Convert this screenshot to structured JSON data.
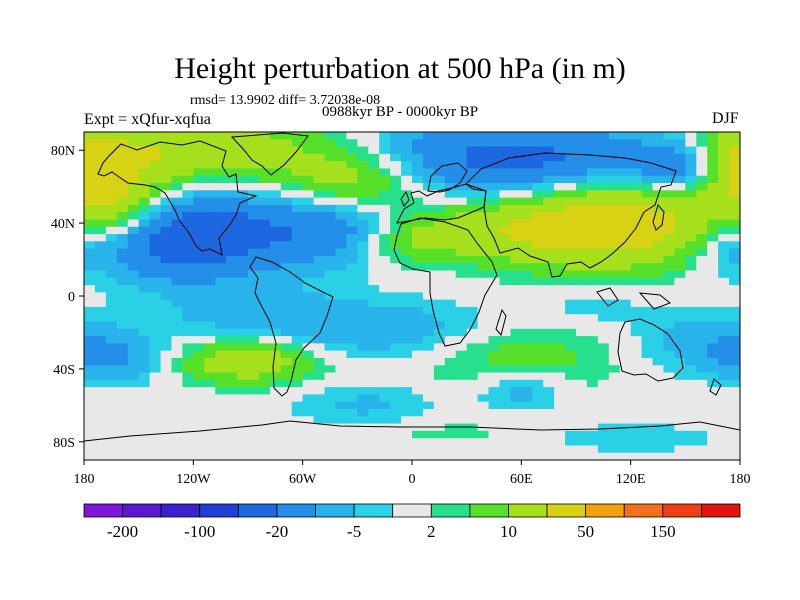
{
  "chart_data": {
    "type": "heatmap",
    "title": "Height perturbation at 500 hPa (in m)",
    "stats_line": "rmsd= 13.9902 diff= 3.72038e-08",
    "experiment": "Expt = xQfur-xqfua",
    "period": "0988kyr BP - 0000kyr BP",
    "season": "DJF",
    "xlabel": "",
    "ylabel": "",
    "xlim": [
      -180,
      180
    ],
    "ylim": [
      -90,
      90
    ],
    "x_ticks": [
      {
        "value": -180,
        "label": "180"
      },
      {
        "value": -120,
        "label": "120W"
      },
      {
        "value": -60,
        "label": "60W"
      },
      {
        "value": 0,
        "label": "0"
      },
      {
        "value": 60,
        "label": "60E"
      },
      {
        "value": 120,
        "label": "120E"
      },
      {
        "value": 180,
        "label": "180"
      }
    ],
    "y_ticks": [
      {
        "value": 80,
        "label": "80N"
      },
      {
        "value": 40,
        "label": "40N"
      },
      {
        "value": 0,
        "label": "0"
      },
      {
        "value": -40,
        "label": "40S"
      },
      {
        "value": -80,
        "label": "80S"
      }
    ],
    "colorbar": {
      "colors": [
        "#7f16d9",
        "#5a18d2",
        "#3a22cf",
        "#1f3fd6",
        "#1d67e0",
        "#238fe8",
        "#28b4ea",
        "#2ad0e6",
        "#e8e8e8",
        "#27e08e",
        "#57e02a",
        "#a6e01c",
        "#d8d215",
        "#f2a20e",
        "#f3701a",
        "#ee4013",
        "#e0150f"
      ],
      "labels": [
        {
          "boundary": 1,
          "label": "-200"
        },
        {
          "boundary": 3,
          "label": "-100"
        },
        {
          "boundary": 5,
          "label": "-20"
        },
        {
          "boundary": 7,
          "label": "-5"
        },
        {
          "boundary": 9,
          "label": "2"
        },
        {
          "boundary": 11,
          "label": "10"
        },
        {
          "boundary": 13,
          "label": "50"
        },
        {
          "boundary": 15,
          "label": "150"
        }
      ]
    },
    "anomaly_centers": [
      {
        "lon": -120,
        "lat": 80,
        "value": 18,
        "sx": 55,
        "sy": 12
      },
      {
        "lon": -170,
        "lat": 50,
        "value": 28,
        "sx": 22,
        "sy": 22
      },
      {
        "lon": -110,
        "lat": 35,
        "value": -24,
        "sx": 42,
        "sy": 15
      },
      {
        "lon": -150,
        "lat": 25,
        "value": -14,
        "sx": 35,
        "sy": 14
      },
      {
        "lon": -40,
        "lat": 35,
        "value": -10,
        "sx": 25,
        "sy": 12
      },
      {
        "lon": -30,
        "lat": 65,
        "value": 16,
        "sx": 30,
        "sy": 12
      },
      {
        "lon": 55,
        "lat": 75,
        "value": -25,
        "sx": 60,
        "sy": 14
      },
      {
        "lon": 150,
        "lat": 70,
        "value": -15,
        "sx": 22,
        "sy": 10
      },
      {
        "lon": 110,
        "lat": 40,
        "value": 30,
        "sx": 40,
        "sy": 17
      },
      {
        "lon": 40,
        "lat": 35,
        "value": 12,
        "sx": 32,
        "sy": 11
      },
      {
        "lon": -5,
        "lat": 30,
        "value": 8,
        "sx": 20,
        "sy": 9
      },
      {
        "lon": 175,
        "lat": 35,
        "value": -12,
        "sx": 14,
        "sy": 14
      },
      {
        "lon": 175,
        "lat": 75,
        "value": 12,
        "sx": 12,
        "sy": 10
      },
      {
        "lon": -90,
        "lat": -35,
        "value": 18,
        "sx": 26,
        "sy": 9
      },
      {
        "lon": -20,
        "lat": -18,
        "value": -9,
        "sx": 48,
        "sy": 11
      },
      {
        "lon": -90,
        "lat": -10,
        "value": -6,
        "sx": 35,
        "sy": 13
      },
      {
        "lon": 60,
        "lat": -35,
        "value": 9,
        "sx": 35,
        "sy": 14
      },
      {
        "lon": 60,
        "lat": -50,
        "value": -10,
        "sx": 18,
        "sy": 9
      },
      {
        "lon": 165,
        "lat": -25,
        "value": -8,
        "sx": 30,
        "sy": 12
      },
      {
        "lon": -165,
        "lat": -35,
        "value": -9,
        "sx": 22,
        "sy": 9
      },
      {
        "lon": -25,
        "lat": -60,
        "value": -6,
        "sx": 30,
        "sy": 8
      },
      {
        "lon": 100,
        "lat": -5,
        "value": -4,
        "sx": 20,
        "sy": 8
      },
      {
        "lon": 120,
        "lat": -78,
        "value": -4,
        "sx": 35,
        "sy": 6
      },
      {
        "lon": 20,
        "lat": -75,
        "value": 3,
        "sx": 30,
        "sy": 6
      }
    ]
  }
}
